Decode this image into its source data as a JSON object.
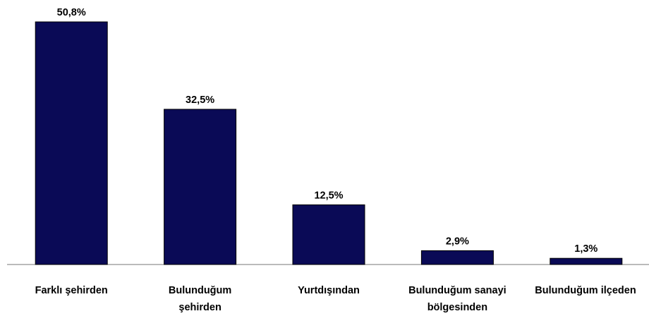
{
  "chart_data": {
    "type": "bar",
    "categories": [
      "Farklı şehirden",
      "Bulunduğum şehirden",
      "Yurtdışından",
      "Bulunduğum sanayi bölgesinden",
      "Bulunduğum ilçeden"
    ],
    "values": [
      50.8,
      32.5,
      12.5,
      2.9,
      1.3
    ],
    "value_labels": [
      "50,8%",
      "32,5%",
      "12,5%",
      "2,9%",
      "1,3%"
    ],
    "color": "#0a0a56"
  }
}
